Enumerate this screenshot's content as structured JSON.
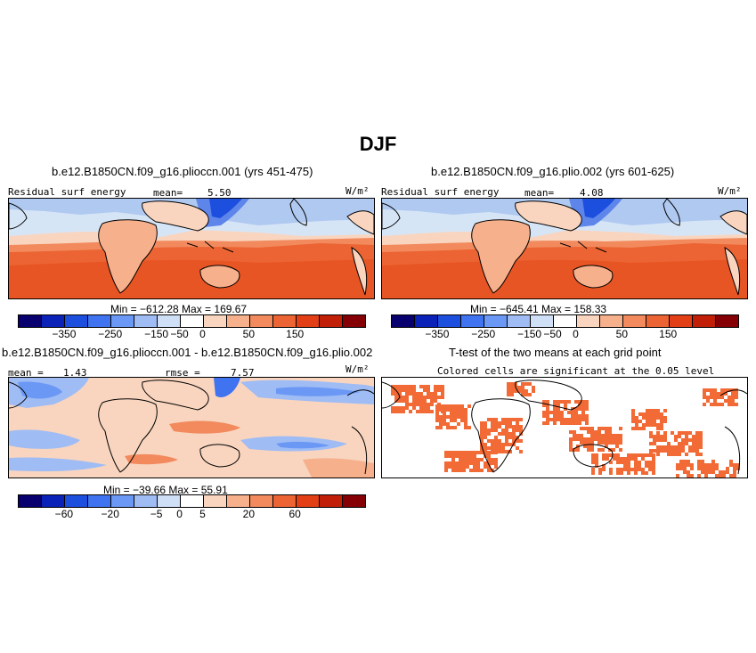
{
  "title": "DJF",
  "panels": [
    {
      "title": "b.e12.B1850CN.f09_g16.plioccn.001 (yrs 451-475)",
      "field_label": "Residual surf energy",
      "mean_label": "mean=",
      "mean_value": "5.50",
      "units": "W/m²",
      "min_max": "Min = −612.28  Max = 169.67"
    },
    {
      "title": "b.e12.B1850CN.f09_g16.plio.002 (yrs 601-625)",
      "field_label": "Residual surf energy",
      "mean_label": "mean=",
      "mean_value": "4.08",
      "units": "W/m²",
      "min_max": "Min = −645.41  Max = 158.33"
    },
    {
      "title": "b.e12.B1850CN.f09_g16.plioccn.001 - b.e12.B1850CN.f09_g16.plio.002",
      "mean_label": "mean =",
      "mean_value": "1.43",
      "rmse_label": "rmse =",
      "rmse_value": "7.57",
      "units": "W/m²",
      "min_max": "Min = −39.66  Max =  55.91"
    },
    {
      "title": "T-test of the two means at each grid point",
      "subtitle": "Colored cells are significant at the 0.05 level"
    }
  ],
  "colorbar_main": {
    "colors": [
      "#08006e",
      "#0a22b8",
      "#1d4fdf",
      "#3f73ef",
      "#6b98f5",
      "#9fbcf4",
      "#cfe0f6",
      "#ffffff",
      "#f9d5bf",
      "#f6b08c",
      "#f28a5d",
      "#ec6433",
      "#e23f16",
      "#c21f08",
      "#850004"
    ],
    "ticks": [
      "−350",
      "−250",
      "−150",
      "−50",
      "0",
      "50",
      "150"
    ]
  },
  "colorbar_diff": {
    "colors": [
      "#08006e",
      "#0a22b8",
      "#1d4fdf",
      "#3f73ef",
      "#6b98f5",
      "#9fbcf4",
      "#cfe0f6",
      "#ffffff",
      "#f9d5bf",
      "#f6b08c",
      "#f28a5d",
      "#ec6433",
      "#e23f16",
      "#c21f08",
      "#850004"
    ],
    "ticks": [
      "−60",
      "−20",
      "−5",
      "0",
      "5",
      "20",
      "60"
    ]
  },
  "significance_color": "#f26a35"
}
